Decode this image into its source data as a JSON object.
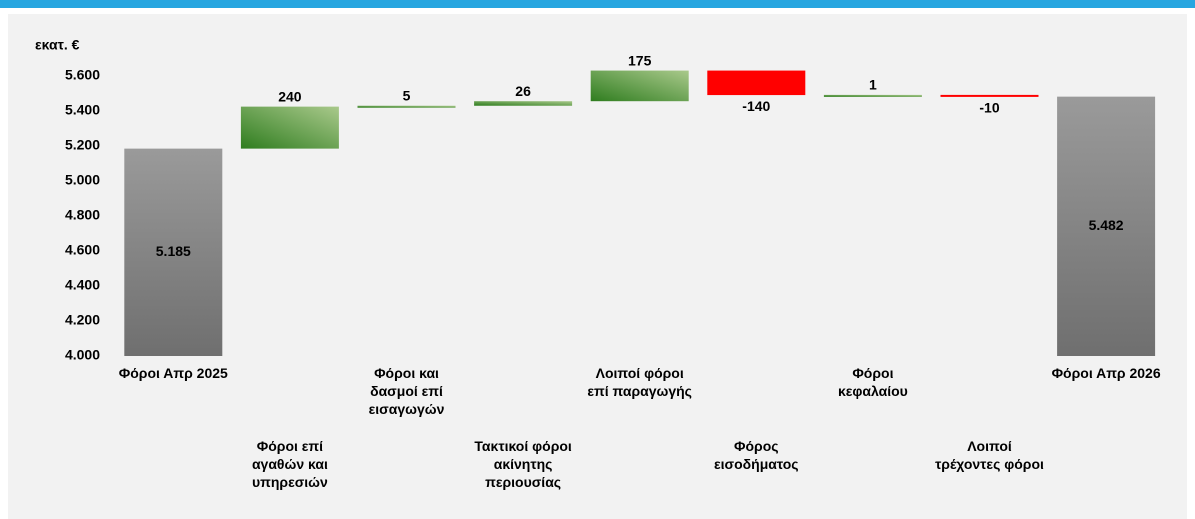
{
  "chart_data": {
    "type": "waterfall",
    "y_label": "εκατ. €",
    "categories": [
      "Φόροι Απρ 2025",
      "Φόροι επί αγαθών και υπηρεσιών",
      "Φόροι και δασμοί επί εισαγωγών",
      "Τακτικοί φόροι ακίνητης περιουσίας",
      "Λοιποί φόροι επί παραγωγής",
      "Φόρος εισοδήματος",
      "Φόροι κεφαλαίου",
      "Λοιποί τρέχοντες φόροι",
      "Φόροι Απρ 2026"
    ],
    "values": [
      5185,
      240,
      5,
      26,
      175,
      -140,
      1,
      -10,
      5482
    ],
    "value_labels": [
      "5.185",
      "240",
      "5",
      "26",
      "175",
      "-140",
      "1",
      "-10",
      "5.482"
    ],
    "measure": [
      "total",
      "relative",
      "relative",
      "relative",
      "relative",
      "relative",
      "relative",
      "relative",
      "total"
    ],
    "colors": {
      "total": "#8a8a8a",
      "increase": "#2f7d1f",
      "decrease": "#ff0000"
    },
    "ylim": [
      4000,
      5600
    ],
    "yticks": [
      {
        "value": 4000,
        "label": "4.000"
      },
      {
        "value": 4200,
        "label": "4.200"
      },
      {
        "value": 4400,
        "label": "4.400"
      },
      {
        "value": 4600,
        "label": "4.600"
      },
      {
        "value": 4800,
        "label": "4.800"
      },
      {
        "value": 5000,
        "label": "5.000"
      },
      {
        "value": 5200,
        "label": "5.200"
      },
      {
        "value": 5400,
        "label": "5.400"
      },
      {
        "value": 5600,
        "label": "5.600"
      }
    ],
    "grid": false
  }
}
